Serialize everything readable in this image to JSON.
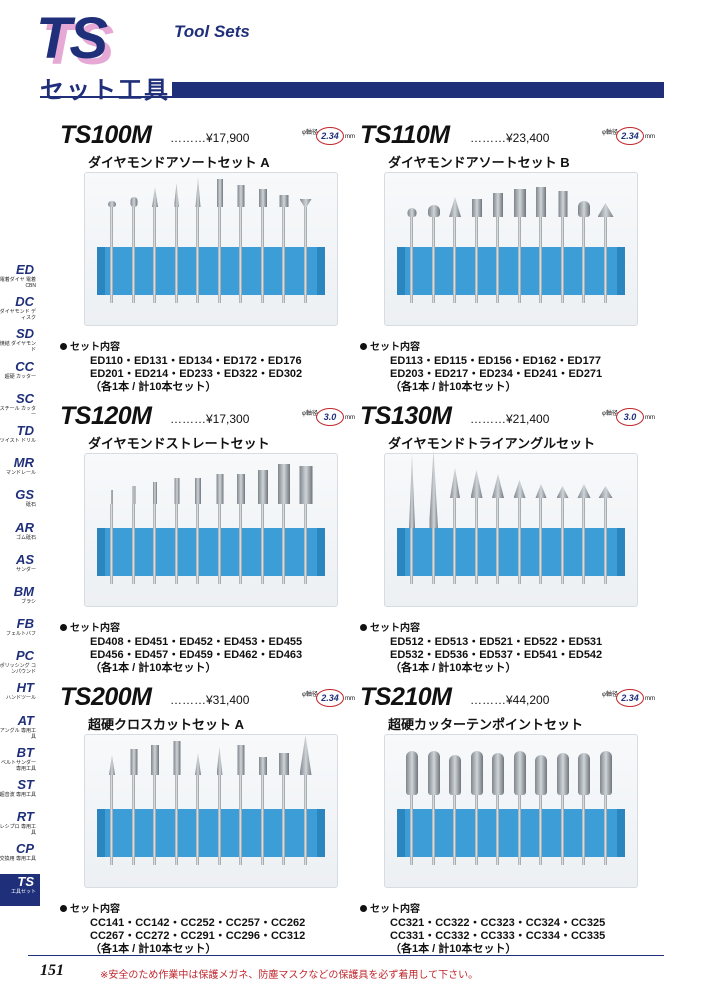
{
  "header": {
    "logo_text": "TS",
    "title_en": "Tool Sets",
    "title_jp": "セット工具"
  },
  "sidebar": [
    {
      "code": "ED",
      "sub": "電着ダイヤ 電着CBN"
    },
    {
      "code": "DC",
      "sub": "ダイヤモンド ディスク"
    },
    {
      "code": "SD",
      "sub": "焼結 ダイヤモンド"
    },
    {
      "code": "CC",
      "sub": "超硬 カッター"
    },
    {
      "code": "SC",
      "sub": "スチール カッター"
    },
    {
      "code": "TD",
      "sub": "ツイスト ドリル"
    },
    {
      "code": "MR",
      "sub": "マンドレール"
    },
    {
      "code": "GS",
      "sub": "砥石"
    },
    {
      "code": "AR",
      "sub": "ゴム砥石"
    },
    {
      "code": "AS",
      "sub": "サンダー"
    },
    {
      "code": "BM",
      "sub": "ブラシ"
    },
    {
      "code": "FB",
      "sub": "フェルトバフ"
    },
    {
      "code": "PC",
      "sub": "ポリッシング コンパウンド"
    },
    {
      "code": "HT",
      "sub": "ハンドツール"
    },
    {
      "code": "AT",
      "sub": "アングル 専用工具"
    },
    {
      "code": "BT",
      "sub": "ベルトサンダー 専用工具"
    },
    {
      "code": "ST",
      "sub": "超音波 専用工具"
    },
    {
      "code": "RT",
      "sub": "レシプロ 専用工具"
    },
    {
      "code": "CP",
      "sub": "交換用 専用工具"
    },
    {
      "code": "TS",
      "sub": "工具セット",
      "active": true
    }
  ],
  "products": [
    {
      "code": "TS100M",
      "price": "………¥17,900",
      "dia_label": "φ軸径",
      "dia": "2.34",
      "unit": "mm",
      "name": "ダイヤモンドアソートセット A",
      "contents_label": "セット内容",
      "lines": [
        "ED110・ED131・ED134・ED172・ED176",
        "ED201・ED214・ED233・ED322・ED302",
        "（各1本 / 計10本セット）"
      ]
    },
    {
      "code": "TS110M",
      "price": "………¥23,400",
      "dia_label": "φ軸径",
      "dia": "2.34",
      "unit": "mm",
      "name": "ダイヤモンドアソートセット B",
      "contents_label": "セット内容",
      "lines": [
        "ED113・ED115・ED156・ED162・ED177",
        "ED203・ED217・ED234・ED241・ED271",
        "（各1本 / 計10本セット）"
      ]
    },
    {
      "code": "TS120M",
      "price": "………¥17,300",
      "dia_label": "φ軸径",
      "dia": "3.0",
      "unit": "mm",
      "name": "ダイヤモンドストレートセット",
      "contents_label": "セット内容",
      "lines": [
        "ED408・ED451・ED452・ED453・ED455",
        "ED456・ED457・ED459・ED462・ED463",
        "（各1本 / 計10本セット）"
      ]
    },
    {
      "code": "TS130M",
      "price": "………¥21,400",
      "dia_label": "φ軸径",
      "dia": "3.0",
      "unit": "mm",
      "name": "ダイヤモンドトライアングルセット",
      "contents_label": "セット内容",
      "lines": [
        "ED512・ED513・ED521・ED522・ED531",
        "ED532・ED536・ED537・ED541・ED542",
        "（各1本 / 計10本セット）"
      ]
    },
    {
      "code": "TS200M",
      "price": "………¥31,400",
      "dia_label": "φ軸径",
      "dia": "2.34",
      "unit": "mm",
      "name": "超硬クロスカットセット A",
      "contents_label": "セット内容",
      "lines": [
        "CC141・CC142・CC252・CC257・CC262",
        "CC267・CC272・CC291・CC296・CC312",
        "（各1本 / 計10本セット）"
      ]
    },
    {
      "code": "TS210M",
      "price": "………¥44,200",
      "dia_label": "φ軸径",
      "dia": "2.34",
      "unit": "mm",
      "name": "超硬カッターテンポイントセット",
      "contents_label": "セット内容",
      "lines": [
        "CC321・CC322・CC323・CC324・CC325",
        "CC331・CC332・CC333・CC334・CC335",
        "（各1本 / 計10本セット）"
      ]
    }
  ],
  "footer": {
    "page": "151",
    "notice": "※安全のため作業中は保護メガネ、防塵マスクなどの保護具を必ず着用して下さい。"
  }
}
